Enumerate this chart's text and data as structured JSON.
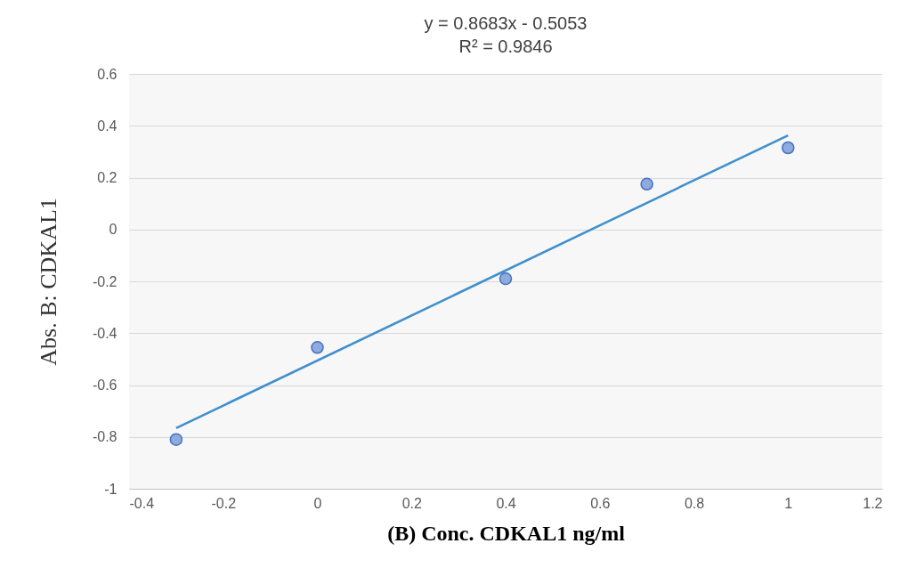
{
  "chart_data": {
    "type": "scatter",
    "annotations": [
      "y = 0.8683x - 0.5053",
      "R² = 0.9846"
    ],
    "xlabel": "(B) Conc. CDKAL1  ng/ml",
    "ylabel": "Abs. B: CDKAL1",
    "x": [
      -0.3,
      0,
      0.4,
      0.7,
      1
    ],
    "series": [
      {
        "color": "#8faadc",
        "marker": "circle",
        "values": [
          -0.81,
          -0.455,
          -0.19,
          0.175,
          0.315
        ]
      },
      {
        "type": "line",
        "color": "#3f8fcc",
        "x": [
          -0.3,
          1
        ],
        "values": [
          -0.766,
          0.363
        ]
      }
    ],
    "xlim": [
      -0.4,
      1.2
    ],
    "xticks": [
      -0.4,
      -0.2,
      0,
      0.2,
      0.4,
      0.6,
      0.8,
      1,
      1.2
    ],
    "ylim": [
      -1,
      0.6
    ],
    "yticks": [
      -1,
      -0.8,
      -0.6,
      -0.4,
      -0.2,
      0,
      0.2,
      0.4,
      0.6
    ],
    "grid": "y",
    "line_style": "solid"
  }
}
